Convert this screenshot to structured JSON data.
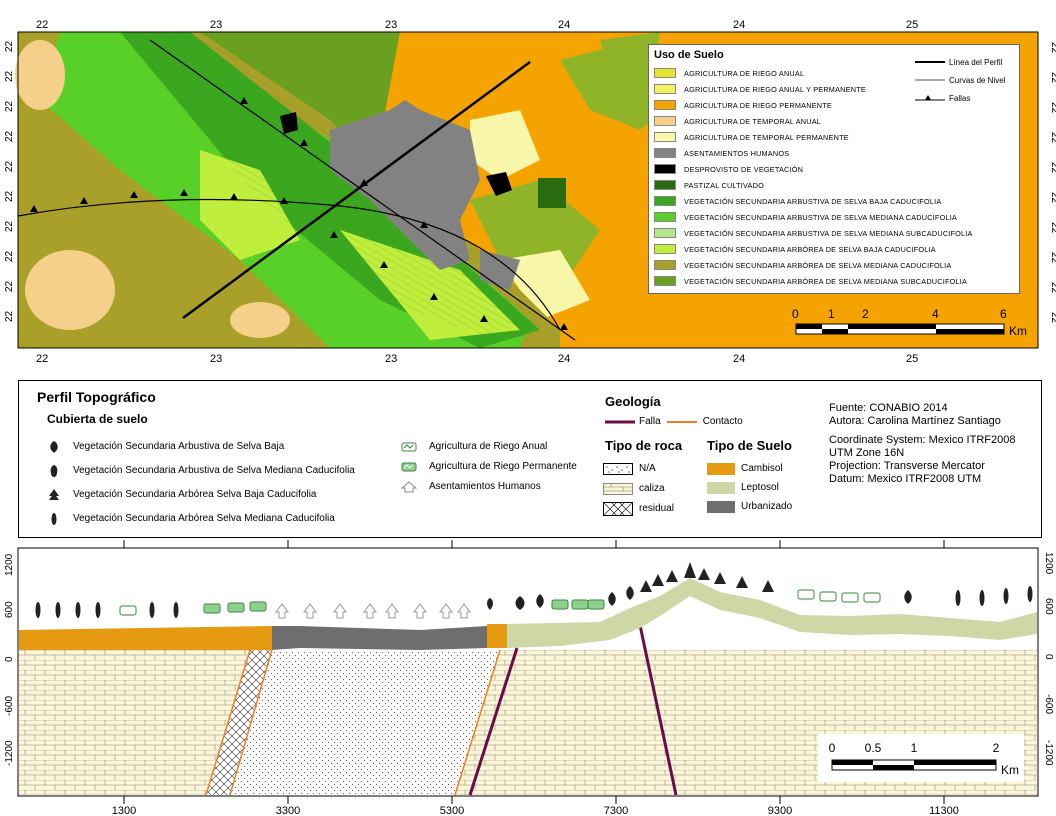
{
  "map": {
    "top_ticks": [
      "22",
      "23",
      "23",
      "24",
      "24",
      "25"
    ],
    "bottom_ticks": [
      "22",
      "23",
      "23",
      "24",
      "24",
      "25"
    ],
    "left_ticks": [
      "22",
      "22",
      "22",
      "22",
      "22",
      "22",
      "22",
      "22",
      "22",
      "22"
    ],
    "right_ticks": [
      "22",
      "22",
      "22",
      "22",
      "22",
      "22",
      "22",
      "22",
      "22",
      "22"
    ],
    "legend": {
      "title": "Uso de Suelo",
      "items": [
        {
          "label": "AGRICULTURA DE RIEGO ANUAL",
          "color": "#e6e62e"
        },
        {
          "label": "AGRICULTURA DE RIEGO ANUAL Y PERMANENTE",
          "color": "#f2f25a"
        },
        {
          "label": "AGRICULTURA DE RIEGO PERMANENTE",
          "color": "#f5a300"
        },
        {
          "label": "AGRICULTURA DE TEMPORAL ANUAL",
          "color": "#f5d08a"
        },
        {
          "label": "AGRICULTURA DE TEMPORAL PERMANENTE",
          "color": "#f8f6a8"
        },
        {
          "label": "ASENTAMIENTOS HUMANOS",
          "color": "#828282"
        },
        {
          "label": "DESPROVISTO DE VEGETACIÓN",
          "color": "#000000"
        },
        {
          "label": "PASTIZAL CULTIVADO",
          "color": "#2b6b10"
        },
        {
          "label": "VEGETACIÓN SECUNDARIA ARBUSTIVA DE SELVA BAJA CADUCIFOLIA",
          "color": "#3aa81e"
        },
        {
          "label": "VEGETACIÓN SECUNDARIA ARBUSTIVA DE SELVA MEDIANA CADUCIFOLIA",
          "color": "#58d028"
        },
        {
          "label": "VEGETACIÓN SECUNDARIA ARBUSTIVA DE SELVA MEDIANA SUBCADUCIFOLIA",
          "color": "#b4e88c"
        },
        {
          "label": "VEGETACIÓN SECUNDARIA ARBÓREA DE SELVA BAJA CADUCIFOLIA",
          "color": "#c0ee3c"
        },
        {
          "label": "VEGETACIÓN SECUNDARIA ARBÓREA DE SELVA MEDIANA CADUCIFOLIA",
          "color": "#a8a028"
        },
        {
          "label": "VEGETACIÓN SECUNDARIA ARBÓREA DE SELVA MEDIANA SUBCADUCIFOLIA",
          "color": "#6aa020"
        }
      ],
      "lines": [
        {
          "label": "Línea del Perfil"
        },
        {
          "label": "Curvas de Nivel"
        },
        {
          "label": "Fallas"
        }
      ]
    },
    "scalebar": {
      "ticks": [
        "0",
        "1",
        "2",
        "4",
        "6"
      ],
      "unit": "Km"
    }
  },
  "legend_panel": {
    "title": "Perfil Topográfico",
    "cover_title": "Cubierta de suelo",
    "cover_items": [
      "Vegetación Secundaria Arbustiva de Selva Baja",
      "Vegetación Secundaria Arbustiva de Selva Mediana Caducifolia",
      "Vegetación Secundaria Arbórea Selva Baja Caducifolia",
      "Vegetación Secundaria Arbórea Selva Mediana Caducifolia"
    ],
    "crop_items": [
      "Agricultura de Riego Anual",
      "Agricultura de Riego Permanente",
      "Asentamientos Humanos"
    ],
    "geology_title": "Geología",
    "geology_lines": [
      {
        "label": "Falla",
        "color": "#6b0a4a"
      },
      {
        "label": "Contacto",
        "color": "#f07d1e"
      }
    ],
    "rock_title": "Tipo de roca",
    "rock_items": [
      "N/A",
      "caliza",
      "residual"
    ],
    "soil_title": "Tipo de Suelo",
    "soil_items": [
      {
        "label": "Cambisol",
        "color": "#e59a12"
      },
      {
        "label": "Leptosol",
        "color": "#cdd8a6"
      },
      {
        "label": "Urbanizado",
        "color": "#6e6e6e"
      }
    ],
    "credits": [
      "Fuente: CONABIO 2014",
      "Autora: Carolina Martínez Santiago",
      "Coordinate System: Mexico ITRF2008",
      "UTM Zone 16N",
      "Projection: Transverse Mercator",
      "Datum:  Mexico ITRF2008 UTM"
    ]
  },
  "profile": {
    "y_ticks": [
      "1200",
      "600",
      "0",
      "-600",
      "-1200"
    ],
    "x_ticks": [
      "1300",
      "3300",
      "5300",
      "7300",
      "9300",
      "11300"
    ],
    "scalebar": {
      "ticks": [
        "0",
        "0.5",
        "1",
        "2"
      ],
      "unit": "Km"
    }
  }
}
